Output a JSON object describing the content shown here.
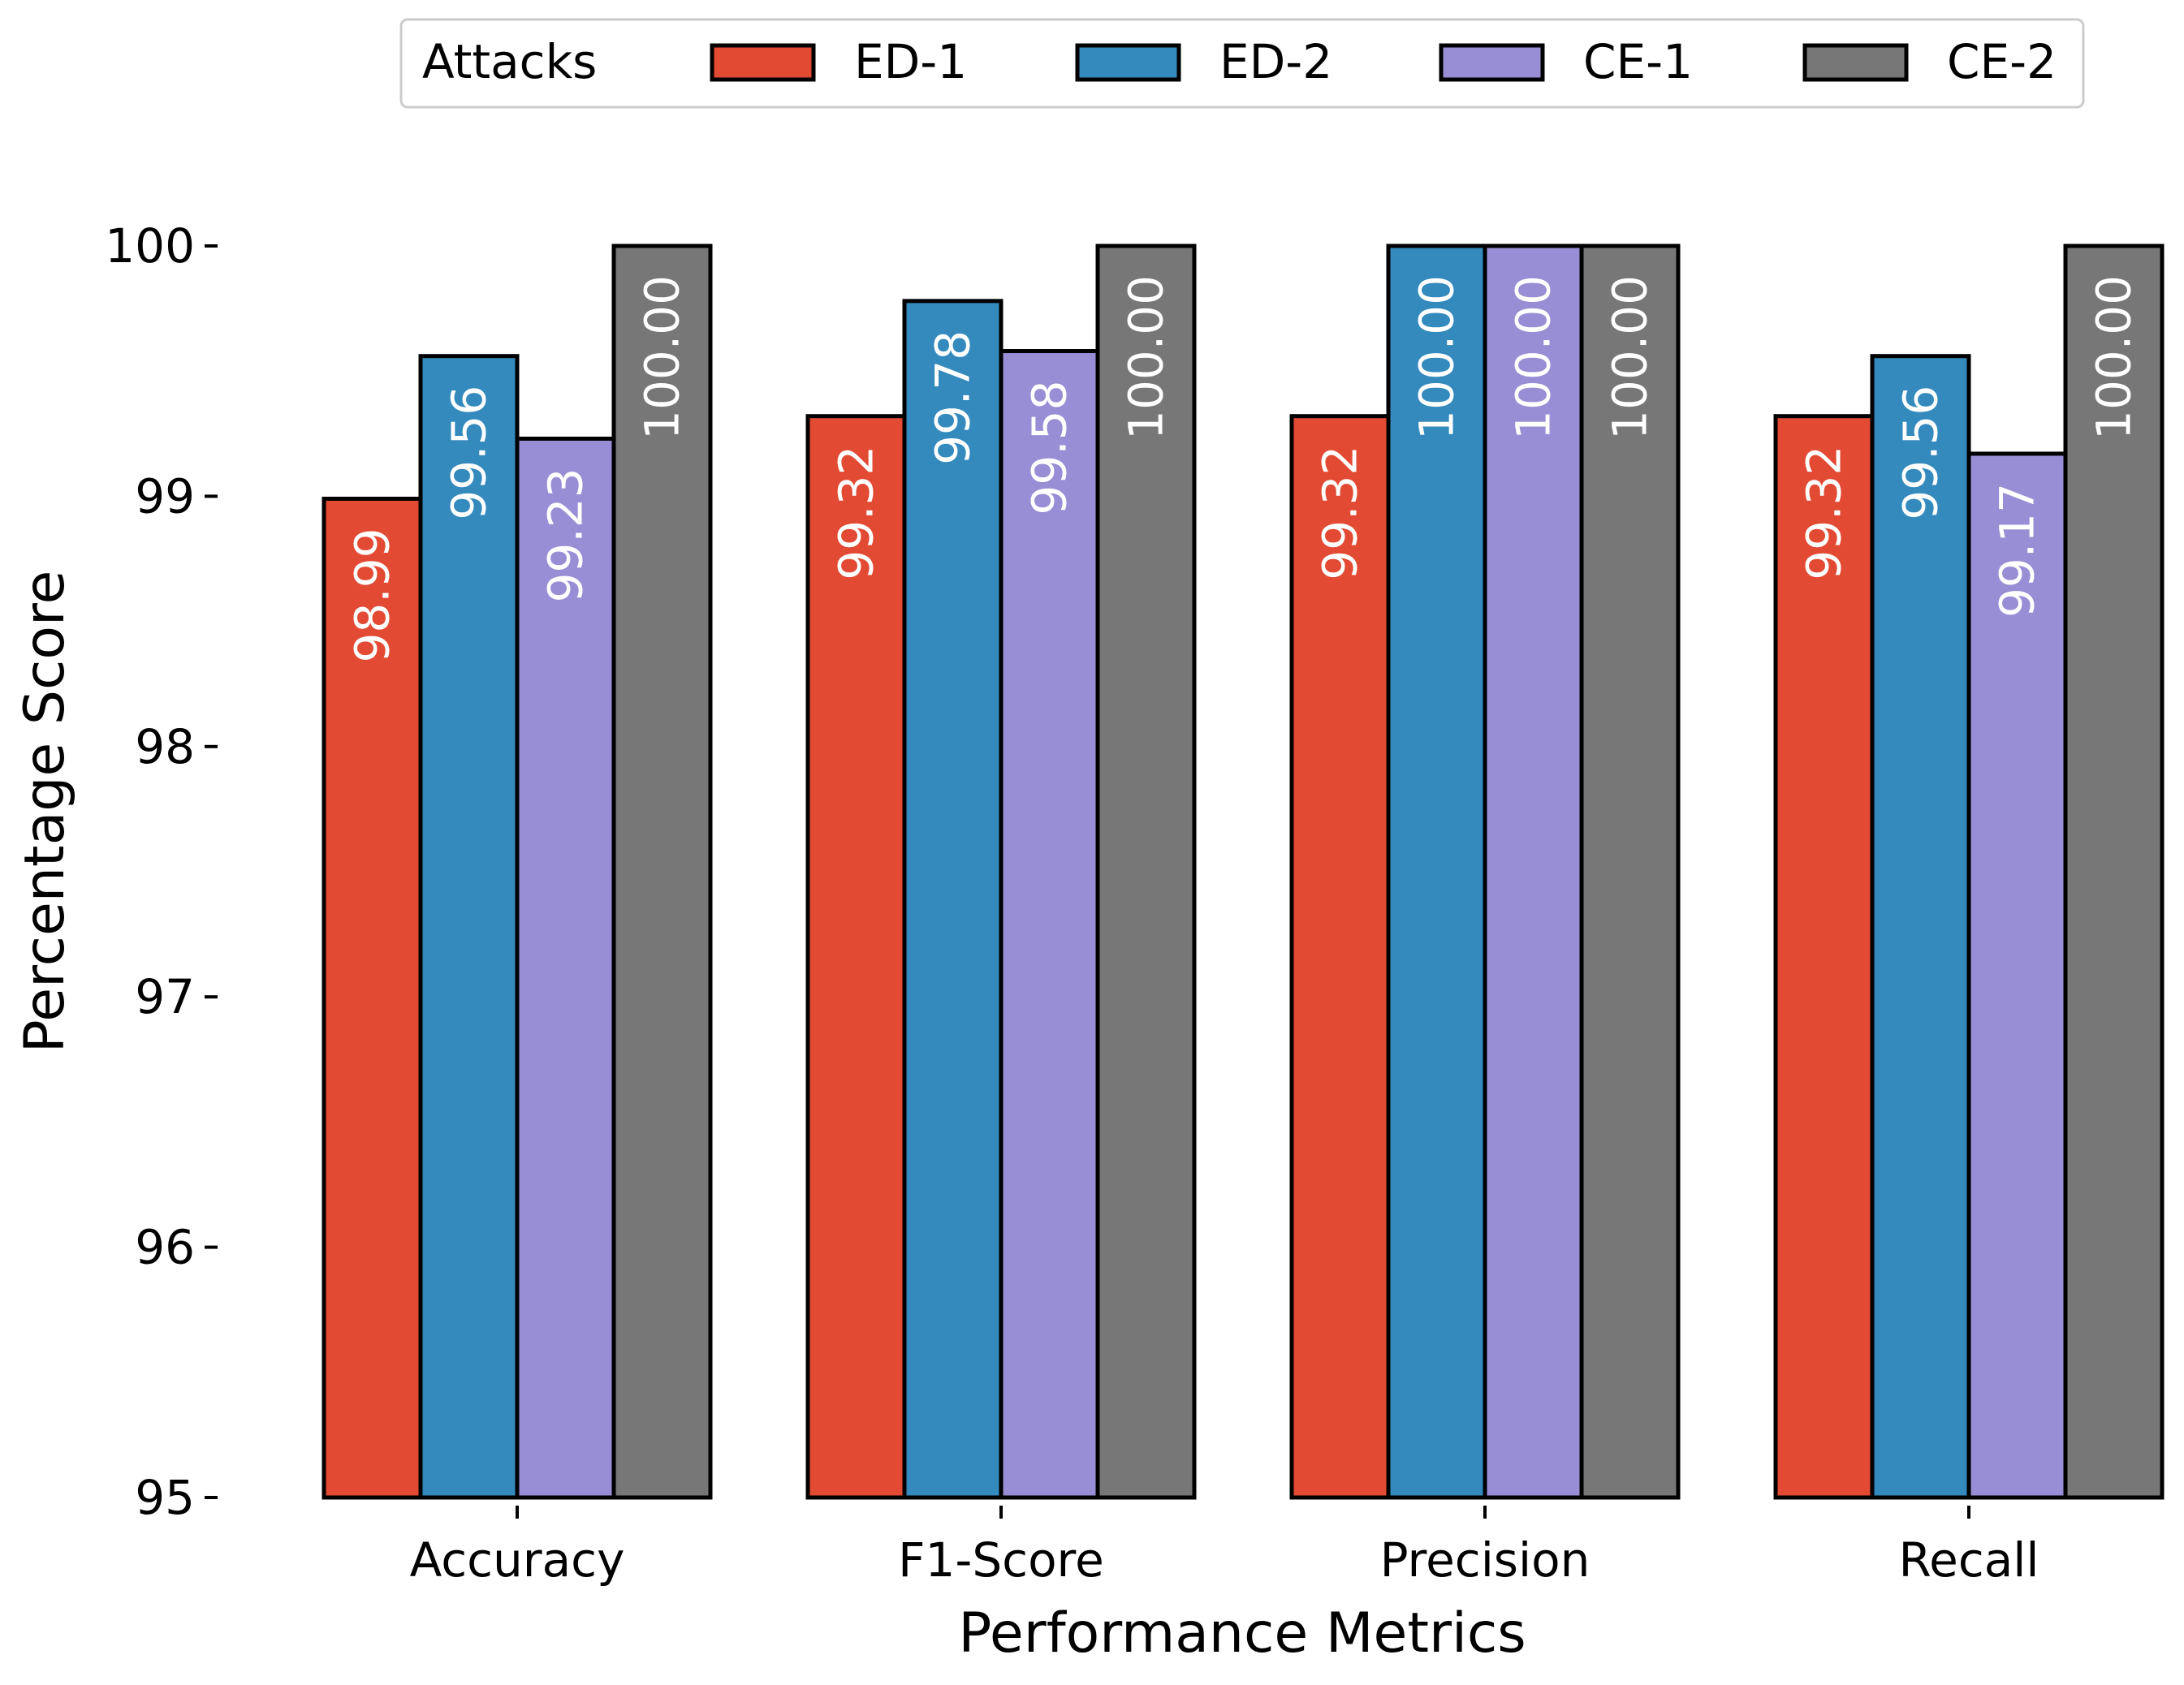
{
  "chart_data": {
    "type": "bar",
    "title": "",
    "xlabel": "Performance Metrics",
    "ylabel": "Percentage Score",
    "ylim": [
      95,
      100
    ],
    "yticks": [
      95,
      96,
      97,
      98,
      99,
      100
    ],
    "categories": [
      "Accuracy",
      "F1-Score",
      "Precision",
      "Recall"
    ],
    "legend_title": "Attacks",
    "legend_position": "top-center",
    "series": [
      {
        "name": "ED-1",
        "color": "#e24a33",
        "values": [
          98.99,
          99.32,
          99.32,
          99.32
        ],
        "labels": [
          "98.99",
          "99.32",
          "99.32",
          "99.32"
        ]
      },
      {
        "name": "ED-2",
        "color": "#348abd",
        "values": [
          99.56,
          99.78,
          100.0,
          99.56
        ],
        "labels": [
          "99.56",
          "99.78",
          "100.00",
          "99.56"
        ]
      },
      {
        "name": "CE-1",
        "color": "#988ed5",
        "values": [
          99.23,
          99.58,
          100.0,
          99.17
        ],
        "labels": [
          "99.23",
          "99.58",
          "100.00",
          "99.17"
        ]
      },
      {
        "name": "CE-2",
        "color": "#777777",
        "values": [
          100.0,
          100.0,
          100.0,
          100.0
        ],
        "labels": [
          "100.00",
          "100.00",
          "100.00",
          "100.00"
        ]
      }
    ]
  }
}
